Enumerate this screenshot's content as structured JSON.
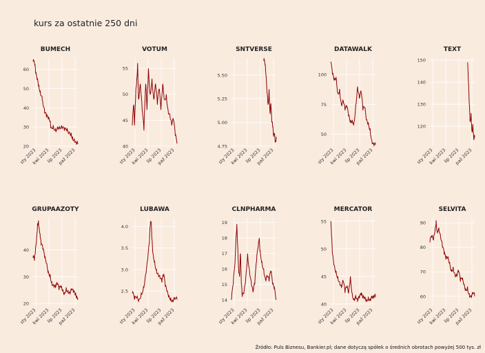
{
  "title": "kurs za ostatnie 250 dni",
  "caption": "Źródło: Puls Biznesu, Bankier.pl; dane dotyczą spółek o średnich obrotach powyżej 500 tys. zł",
  "colors": {
    "background": "#faebdf",
    "grid": "#ffffff",
    "line": "#8b0000",
    "text": "#333333"
  },
  "x_tick_labels": [
    "sty 2023",
    "kwi 2023",
    "lip 2023",
    "paź 2023"
  ],
  "chart_data": [
    {
      "type": "line",
      "title": "BUMECH",
      "ylim": [
        20,
        66
      ],
      "yticks": [
        "20",
        "30",
        "40",
        "50",
        "60"
      ],
      "points": [
        [
          0.0,
          64
        ],
        [
          0.04,
          62
        ],
        [
          0.06,
          58
        ],
        [
          0.1,
          55
        ],
        [
          0.13,
          52
        ],
        [
          0.16,
          49
        ],
        [
          0.2,
          46
        ],
        [
          0.22,
          42
        ],
        [
          0.26,
          37
        ],
        [
          0.3,
          35
        ],
        [
          0.34,
          34
        ],
        [
          0.38,
          33
        ],
        [
          0.4,
          30
        ],
        [
          0.45,
          31
        ],
        [
          0.5,
          29
        ],
        [
          0.55,
          30
        ],
        [
          0.6,
          29
        ],
        [
          0.65,
          29
        ],
        [
          0.7,
          28
        ],
        [
          0.75,
          28
        ],
        [
          0.8,
          27
        ],
        [
          0.85,
          27
        ],
        [
          0.88,
          25
        ],
        [
          0.92,
          24
        ],
        [
          0.96,
          22
        ],
        [
          1.0,
          21
        ]
      ]
    },
    {
      "type": "line",
      "title": "VOTUM",
      "ylim": [
        40,
        57
      ],
      "yticks": [
        "40",
        "45",
        "50",
        "55"
      ],
      "points": [
        [
          0.0,
          44
        ],
        [
          0.03,
          48
        ],
        [
          0.05,
          44
        ],
        [
          0.08,
          51
        ],
        [
          0.1,
          53
        ],
        [
          0.12,
          56
        ],
        [
          0.14,
          49
        ],
        [
          0.18,
          52
        ],
        [
          0.22,
          47
        ],
        [
          0.26,
          43
        ],
        [
          0.3,
          52
        ],
        [
          0.33,
          47
        ],
        [
          0.36,
          55
        ],
        [
          0.4,
          50
        ],
        [
          0.44,
          53
        ],
        [
          0.48,
          49
        ],
        [
          0.52,
          52
        ],
        [
          0.56,
          48
        ],
        [
          0.6,
          51
        ],
        [
          0.64,
          47
        ],
        [
          0.68,
          52
        ],
        [
          0.72,
          49
        ],
        [
          0.76,
          50
        ],
        [
          0.8,
          47
        ],
        [
          0.84,
          46
        ],
        [
          0.88,
          44
        ],
        [
          0.92,
          45
        ],
        [
          0.96,
          42
        ],
        [
          1.0,
          40.5
        ]
      ]
    },
    {
      "type": "line",
      "title": "SNTVERSE",
      "ylim": [
        4.75,
        5.68
      ],
      "yticks": [
        "4.75",
        "5.00",
        "5.25",
        "5.50"
      ],
      "points": [
        [
          0.72,
          5.65
        ],
        [
          0.75,
          5.6
        ],
        [
          0.77,
          5.5
        ],
        [
          0.8,
          5.3
        ],
        [
          0.82,
          5.2
        ],
        [
          0.84,
          5.35
        ],
        [
          0.86,
          5.1
        ],
        [
          0.88,
          5.2
        ],
        [
          0.9,
          5.0
        ],
        [
          0.92,
          4.95
        ],
        [
          0.94,
          4.85
        ],
        [
          0.96,
          4.88
        ],
        [
          0.98,
          4.8
        ],
        [
          1.0,
          4.85
        ]
      ]
    },
    {
      "type": "line",
      "title": "DATAWALK",
      "ylim": [
        40,
        114
      ],
      "yticks": [
        "50",
        "75",
        "100"
      ],
      "points": [
        [
          0.0,
          110
        ],
        [
          0.04,
          100
        ],
        [
          0.08,
          95
        ],
        [
          0.12,
          98
        ],
        [
          0.16,
          85
        ],
        [
          0.2,
          88
        ],
        [
          0.24,
          75
        ],
        [
          0.28,
          78
        ],
        [
          0.32,
          70
        ],
        [
          0.36,
          72
        ],
        [
          0.4,
          65
        ],
        [
          0.44,
          60
        ],
        [
          0.48,
          62
        ],
        [
          0.52,
          60
        ],
        [
          0.56,
          75
        ],
        [
          0.6,
          90
        ],
        [
          0.64,
          80
        ],
        [
          0.68,
          85
        ],
        [
          0.72,
          70
        ],
        [
          0.76,
          72
        ],
        [
          0.8,
          62
        ],
        [
          0.84,
          60
        ],
        [
          0.88,
          55
        ],
        [
          0.92,
          45
        ],
        [
          0.96,
          42
        ],
        [
          1.0,
          41
        ]
      ]
    },
    {
      "type": "line",
      "title": "TEXT",
      "ylim": [
        111,
        151
      ],
      "yticks": [
        "120",
        "130",
        "140",
        "150"
      ],
      "points": [
        [
          0.84,
          149
        ],
        [
          0.86,
          140
        ],
        [
          0.88,
          130
        ],
        [
          0.9,
          122
        ],
        [
          0.92,
          126
        ],
        [
          0.94,
          118
        ],
        [
          0.96,
          121
        ],
        [
          0.98,
          114
        ],
        [
          1.0,
          115
        ]
      ]
    },
    {
      "type": "line",
      "title": "GRUPAAZOTY",
      "ylim": [
        19,
        52
      ],
      "yticks": [
        "20",
        "30",
        "40"
      ],
      "points": [
        [
          0.0,
          37
        ],
        [
          0.03,
          36
        ],
        [
          0.05,
          39
        ],
        [
          0.08,
          45
        ],
        [
          0.1,
          50
        ],
        [
          0.12,
          51
        ],
        [
          0.14,
          48
        ],
        [
          0.16,
          45
        ],
        [
          0.18,
          42
        ],
        [
          0.22,
          40
        ],
        [
          0.26,
          37
        ],
        [
          0.3,
          35
        ],
        [
          0.34,
          32
        ],
        [
          0.38,
          31
        ],
        [
          0.42,
          28
        ],
        [
          0.46,
          27
        ],
        [
          0.5,
          26
        ],
        [
          0.54,
          27
        ],
        [
          0.58,
          25
        ],
        [
          0.62,
          26
        ],
        [
          0.66,
          25
        ],
        [
          0.7,
          24
        ],
        [
          0.74,
          26
        ],
        [
          0.78,
          25
        ],
        [
          0.82,
          24
        ],
        [
          0.86,
          25
        ],
        [
          0.9,
          24
        ],
        [
          0.94,
          23
        ],
        [
          0.97,
          22
        ],
        [
          1.0,
          22
        ]
      ]
    },
    {
      "type": "line",
      "title": "LUBAWA",
      "ylim": [
        2.15,
        4.2
      ],
      "yticks": [
        "2.5",
        "3.0",
        "3.5",
        "4.0"
      ],
      "points": [
        [
          0.0,
          2.45
        ],
        [
          0.05,
          2.3
        ],
        [
          0.1,
          2.35
        ],
        [
          0.15,
          2.3
        ],
        [
          0.2,
          2.45
        ],
        [
          0.25,
          2.6
        ],
        [
          0.3,
          2.9
        ],
        [
          0.34,
          3.2
        ],
        [
          0.38,
          3.6
        ],
        [
          0.4,
          4.0
        ],
        [
          0.42,
          4.1
        ],
        [
          0.44,
          3.7
        ],
        [
          0.46,
          3.4
        ],
        [
          0.5,
          3.2
        ],
        [
          0.54,
          3.0
        ],
        [
          0.58,
          2.9
        ],
        [
          0.62,
          2.8
        ],
        [
          0.66,
          2.7
        ],
        [
          0.7,
          2.85
        ],
        [
          0.74,
          2.6
        ],
        [
          0.78,
          2.5
        ],
        [
          0.82,
          2.4
        ],
        [
          0.86,
          2.35
        ],
        [
          0.9,
          2.3
        ],
        [
          0.94,
          2.35
        ],
        [
          1.0,
          2.3
        ]
      ]
    },
    {
      "type": "line",
      "title": "CLNPHARMA",
      "ylim": [
        13.6,
        19.3
      ],
      "yticks": [
        "14",
        "15",
        "16",
        "17",
        "18",
        "19"
      ],
      "points": [
        [
          0.0,
          14
        ],
        [
          0.04,
          15
        ],
        [
          0.08,
          16.5
        ],
        [
          0.1,
          18
        ],
        [
          0.12,
          18.9
        ],
        [
          0.14,
          17.5
        ],
        [
          0.16,
          16
        ],
        [
          0.18,
          15.5
        ],
        [
          0.2,
          17
        ],
        [
          0.22,
          15
        ],
        [
          0.24,
          14.2
        ],
        [
          0.28,
          14.5
        ],
        [
          0.32,
          15.5
        ],
        [
          0.36,
          17
        ],
        [
          0.4,
          16
        ],
        [
          0.44,
          15.2
        ],
        [
          0.48,
          14.5
        ],
        [
          0.52,
          15
        ],
        [
          0.56,
          16.5
        ],
        [
          0.6,
          17.5
        ],
        [
          0.62,
          18
        ],
        [
          0.64,
          17.2
        ],
        [
          0.68,
          16.5
        ],
        [
          0.72,
          16
        ],
        [
          0.76,
          15.3
        ],
        [
          0.8,
          15.5
        ],
        [
          0.84,
          15.2
        ],
        [
          0.88,
          15.8
        ],
        [
          0.92,
          15
        ],
        [
          0.96,
          14.8
        ],
        [
          1.0,
          14.1
        ]
      ]
    },
    {
      "type": "line",
      "title": "MERCATOR",
      "ylim": [
        39.6,
        55.6
      ],
      "yticks": [
        "40",
        "45",
        "50",
        "55"
      ],
      "points": [
        [
          0.0,
          55
        ],
        [
          0.02,
          52
        ],
        [
          0.04,
          49
        ],
        [
          0.08,
          47
        ],
        [
          0.12,
          46
        ],
        [
          0.16,
          45
        ],
        [
          0.2,
          44
        ],
        [
          0.24,
          43
        ],
        [
          0.28,
          44
        ],
        [
          0.32,
          42
        ],
        [
          0.36,
          43
        ],
        [
          0.4,
          42
        ],
        [
          0.44,
          45
        ],
        [
          0.48,
          42
        ],
        [
          0.52,
          41
        ],
        [
          0.56,
          41.5
        ],
        [
          0.6,
          40.5
        ],
        [
          0.64,
          41
        ],
        [
          0.68,
          41.5
        ],
        [
          0.72,
          41
        ],
        [
          0.76,
          41.2
        ],
        [
          0.8,
          40.8
        ],
        [
          0.84,
          41.3
        ],
        [
          0.88,
          41
        ],
        [
          0.92,
          41.4
        ],
        [
          0.96,
          41
        ],
        [
          1.0,
          41.2
        ]
      ]
    },
    {
      "type": "line",
      "title": "SELVITA",
      "ylim": [
        56,
        92
      ],
      "yticks": [
        "60",
        "70",
        "80",
        "90"
      ],
      "points": [
        [
          0.0,
          82
        ],
        [
          0.04,
          84
        ],
        [
          0.08,
          83
        ],
        [
          0.12,
          88
        ],
        [
          0.14,
          91
        ],
        [
          0.16,
          87
        ],
        [
          0.2,
          88
        ],
        [
          0.24,
          84
        ],
        [
          0.28,
          80
        ],
        [
          0.32,
          77
        ],
        [
          0.36,
          75
        ],
        [
          0.4,
          76
        ],
        [
          0.44,
          74
        ],
        [
          0.48,
          71
        ],
        [
          0.52,
          72
        ],
        [
          0.56,
          69
        ],
        [
          0.6,
          68
        ],
        [
          0.64,
          70
        ],
        [
          0.68,
          66
        ],
        [
          0.72,
          67
        ],
        [
          0.76,
          65
        ],
        [
          0.8,
          63
        ],
        [
          0.84,
          64
        ],
        [
          0.88,
          61
        ],
        [
          0.92,
          60
        ],
        [
          0.96,
          61
        ],
        [
          1.0,
          60
        ]
      ]
    }
  ]
}
